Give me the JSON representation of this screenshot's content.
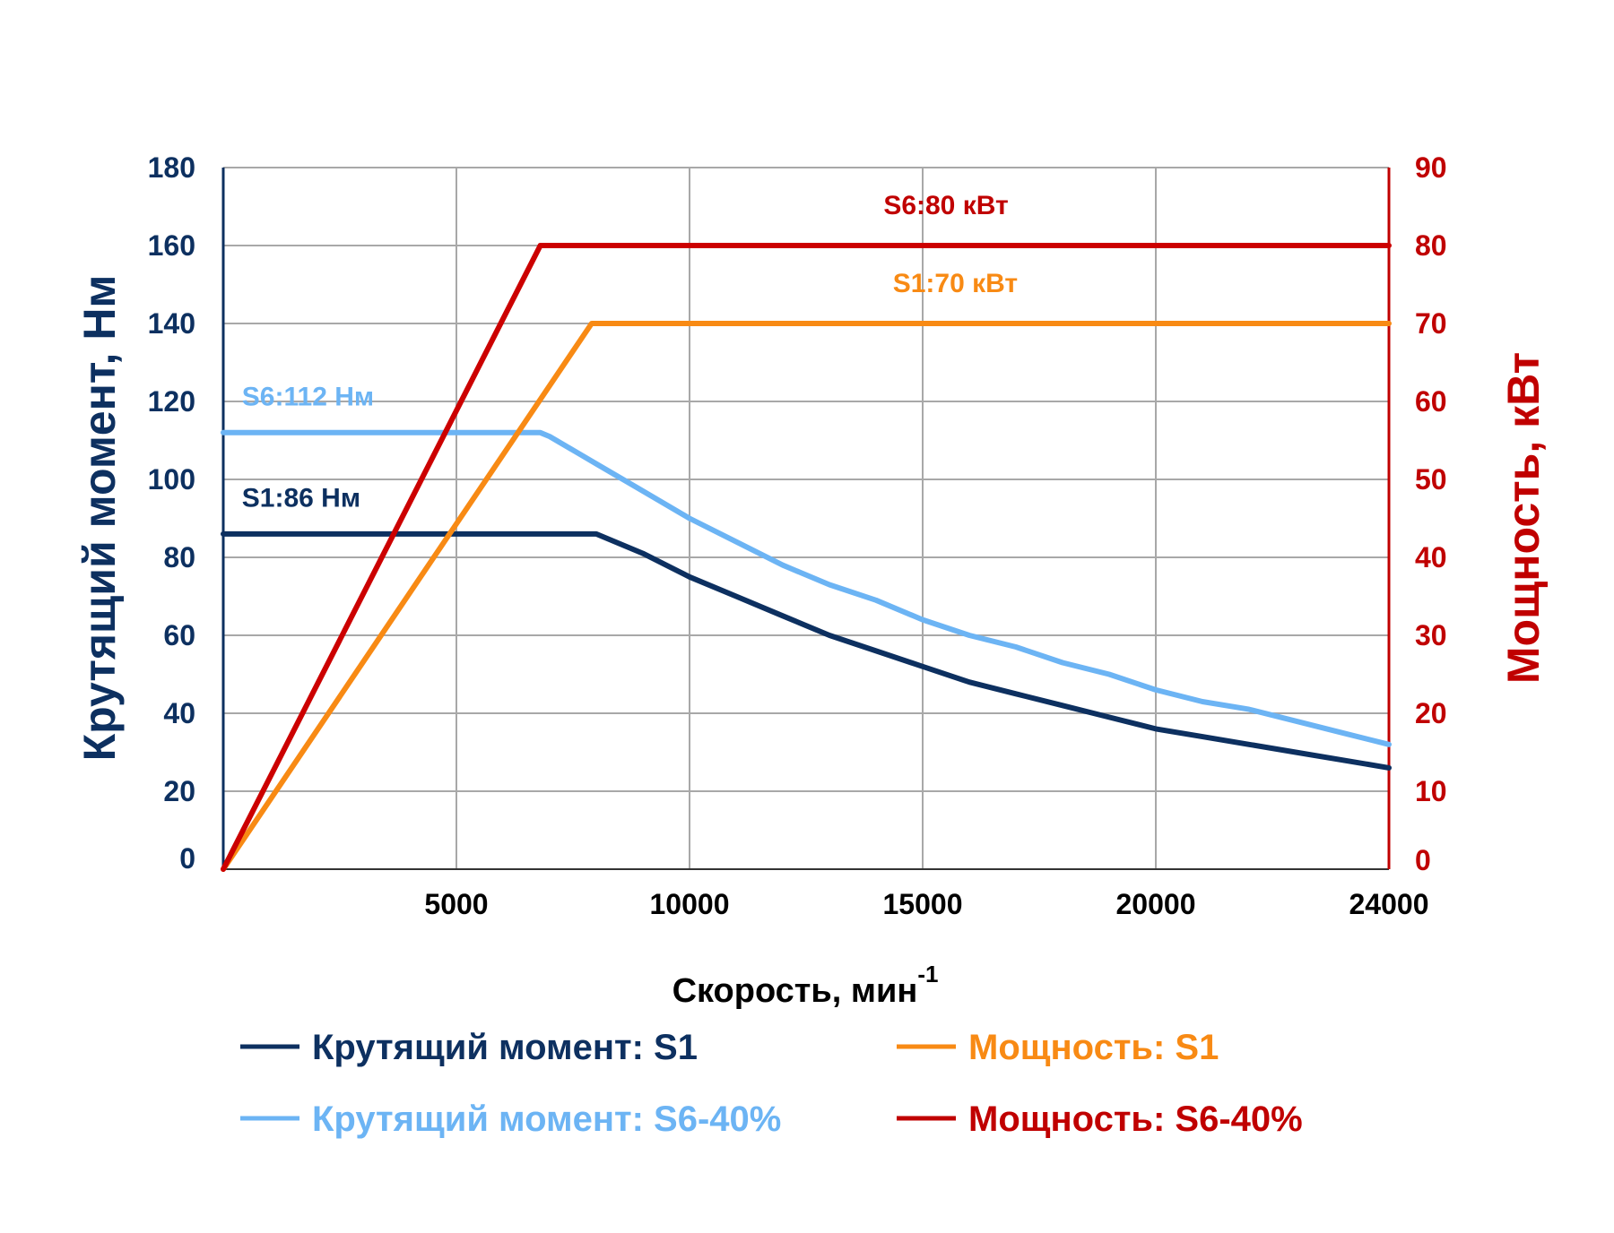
{
  "chart_data": {
    "type": "line",
    "xlabel": "Скорость, мин",
    "xlabel_superscript": "-1",
    "ylabel_left": "Крутящий момент, Нм",
    "ylabel_right": "Мощность, кВт",
    "xlim": [
      0,
      25000
    ],
    "ylim_left": [
      0,
      180
    ],
    "ylim_right": [
      0,
      90
    ],
    "x_ticks": [
      5000,
      10000,
      15000,
      20000,
      24000
    ],
    "x_grid": [
      5000,
      10000,
      15000,
      20000,
      25000
    ],
    "y_left_ticks": [
      0,
      20,
      40,
      60,
      80,
      100,
      120,
      140,
      160,
      180
    ],
    "y_right_ticks": [
      0,
      10,
      20,
      30,
      40,
      50,
      60,
      70,
      80,
      90
    ],
    "grid": true,
    "legend_position": "bottom",
    "colors": {
      "left_axis": "#0d3060",
      "right_axis": "#c00000",
      "torque_s1": "#0d3060",
      "torque_s6": "#6cb4f4",
      "power_s1": "#f88a14",
      "power_s6": "#cc0000",
      "grid": "#a8a8a8"
    },
    "series": [
      {
        "name": "Крутящий момент: S1",
        "axis": "left",
        "color": "#0d3060",
        "x": [
          0,
          8000,
          9000,
          10000,
          11000,
          12000,
          13000,
          14000,
          15000,
          16000,
          17000,
          18000,
          19000,
          20000,
          21000,
          22000,
          23000,
          24000,
          25000
        ],
        "y": [
          86,
          86,
          81,
          75,
          70,
          65,
          60,
          56,
          52,
          48,
          45,
          42,
          39,
          36,
          34,
          32,
          30,
          28,
          26
        ]
      },
      {
        "name": "Крутящий момент: S6-40%",
        "axis": "left",
        "color": "#6cb4f4",
        "x": [
          0,
          6800,
          7000,
          8000,
          9000,
          10000,
          11000,
          12000,
          13000,
          14000,
          15000,
          16000,
          17000,
          18000,
          19000,
          20000,
          21000,
          22000,
          23000,
          24000,
          25000
        ],
        "y": [
          112,
          112,
          111,
          104,
          97,
          90,
          84,
          78,
          73,
          69,
          64,
          60,
          57,
          53,
          50,
          46,
          43,
          41,
          38,
          35,
          32
        ]
      },
      {
        "name": "Мощность: S1",
        "axis": "right",
        "color": "#f88a14",
        "x": [
          0,
          7900,
          25000
        ],
        "y": [
          0,
          70,
          70
        ]
      },
      {
        "name": "Мощность: S6-40%",
        "axis": "right",
        "color": "#cc0000",
        "x": [
          0,
          6800,
          25000
        ],
        "y": [
          0,
          80,
          80
        ]
      }
    ],
    "annotations": [
      {
        "text": "S6:80 кВт",
        "x": 15500,
        "y": 84,
        "axis": "right",
        "anchor": "middle",
        "color": "#c00000"
      },
      {
        "text": "S1:70 кВт",
        "x": 15700,
        "y": 74,
        "axis": "right",
        "anchor": "middle",
        "color": "#f88a14"
      },
      {
        "text": "S6:112 Нм",
        "x": 400,
        "y": 119,
        "axis": "left",
        "anchor": "start",
        "color": "#6cb4f4"
      },
      {
        "text": "S1:86 Нм",
        "x": 400,
        "y": 93,
        "axis": "left",
        "anchor": "start",
        "color": "#0d3060"
      }
    ],
    "legend": [
      {
        "label": "Крутящий момент: S1",
        "color": "#0d3060"
      },
      {
        "label": "Мощность: S1",
        "color": "#f88a14"
      },
      {
        "label": "Крутящий момент: S6-40%",
        "color": "#6cb4f4"
      },
      {
        "label": "Мощность: S6-40%",
        "color": "#c00000"
      }
    ]
  }
}
